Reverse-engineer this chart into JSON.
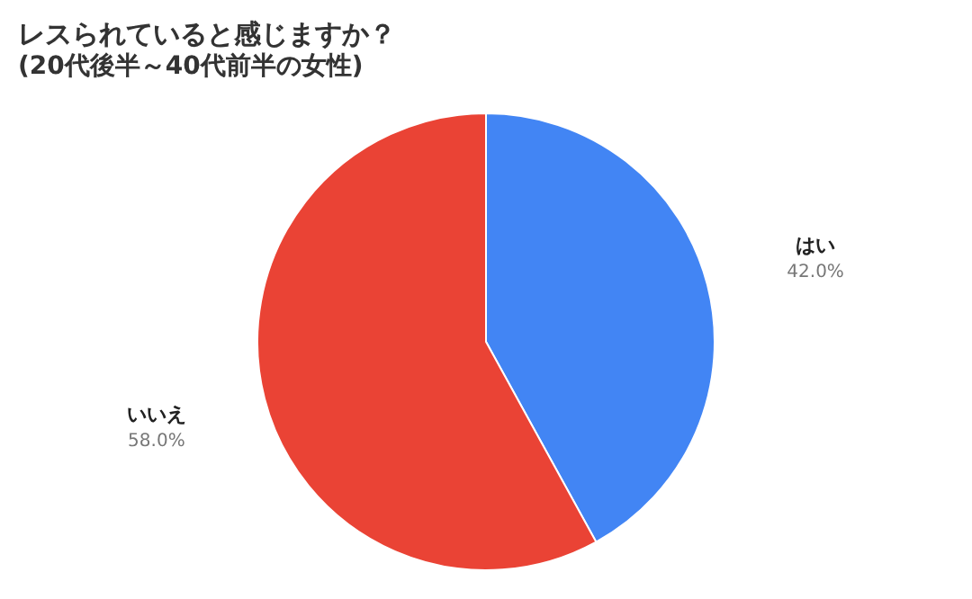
{
  "chart_data": {
    "type": "pie",
    "title": "レスられていると感じますか？",
    "subtitle": "(20代後半～40代前半の女性)",
    "categories": [
      "はい",
      "いいえ"
    ],
    "values": [
      42,
      58
    ],
    "value_labels": [
      "42.0%",
      "58.0%"
    ],
    "colors": [
      "#4285f4",
      "#ea4335"
    ],
    "legend": false
  }
}
